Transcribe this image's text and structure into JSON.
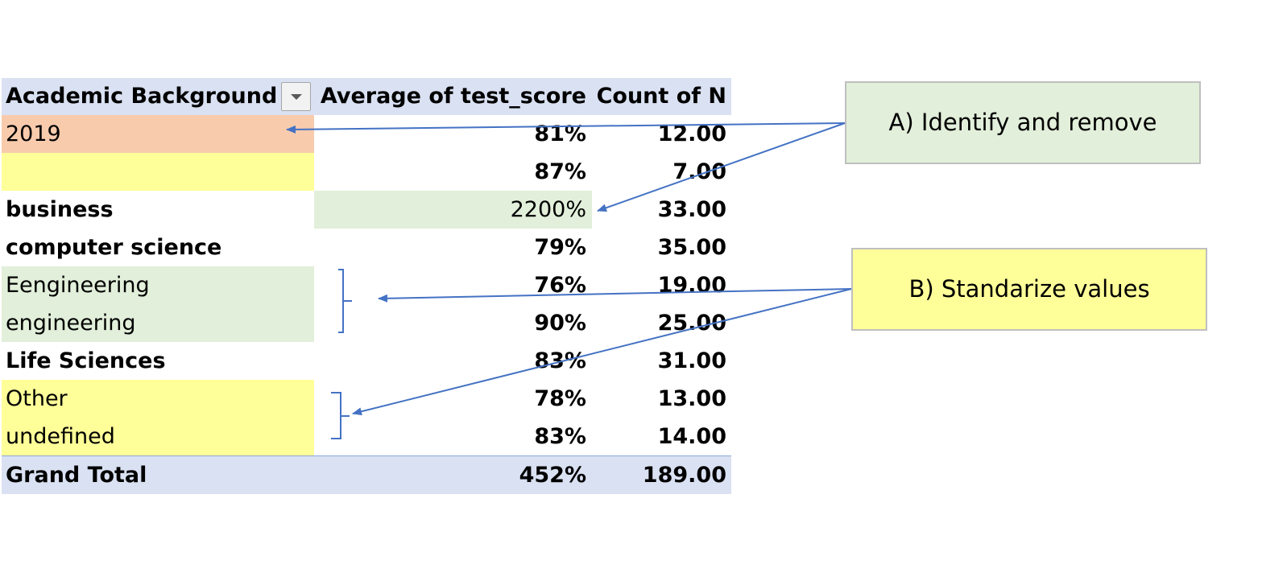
{
  "pivot": {
    "headers": {
      "label": "Academic Background",
      "avg": "Average of test_score",
      "count": "Count of N"
    },
    "rows": [
      {
        "label": "2019",
        "avg": "81%",
        "count": "12.00"
      },
      {
        "label": "",
        "avg": "87%",
        "count": "7.00"
      },
      {
        "label": "business",
        "avg": "2200%",
        "count": "33.00"
      },
      {
        "label": "computer science",
        "avg": "79%",
        "count": "35.00"
      },
      {
        "label": "Eengineering",
        "avg": "76%",
        "count": "19.00"
      },
      {
        "label": "engineering",
        "avg": "90%",
        "count": "25.00"
      },
      {
        "label": "Life Sciences",
        "avg": "83%",
        "count": "31.00"
      },
      {
        "label": "Other",
        "avg": "78%",
        "count": "13.00"
      },
      {
        "label": "undefined",
        "avg": "83%",
        "count": "14.00"
      }
    ],
    "total": {
      "label": "Grand Total",
      "avg": "452%",
      "count": "189.00"
    }
  },
  "annotations": {
    "a": "A) Identify and remove",
    "b": "B) Standarize values"
  },
  "colors": {
    "header": "#d9e1f2",
    "salmon": "#f8cbad",
    "yellow": "#ffff99",
    "green": "#e2efda",
    "arrow": "#4472c4"
  },
  "icons": {
    "filter": "dropdown-triangle-icon"
  }
}
